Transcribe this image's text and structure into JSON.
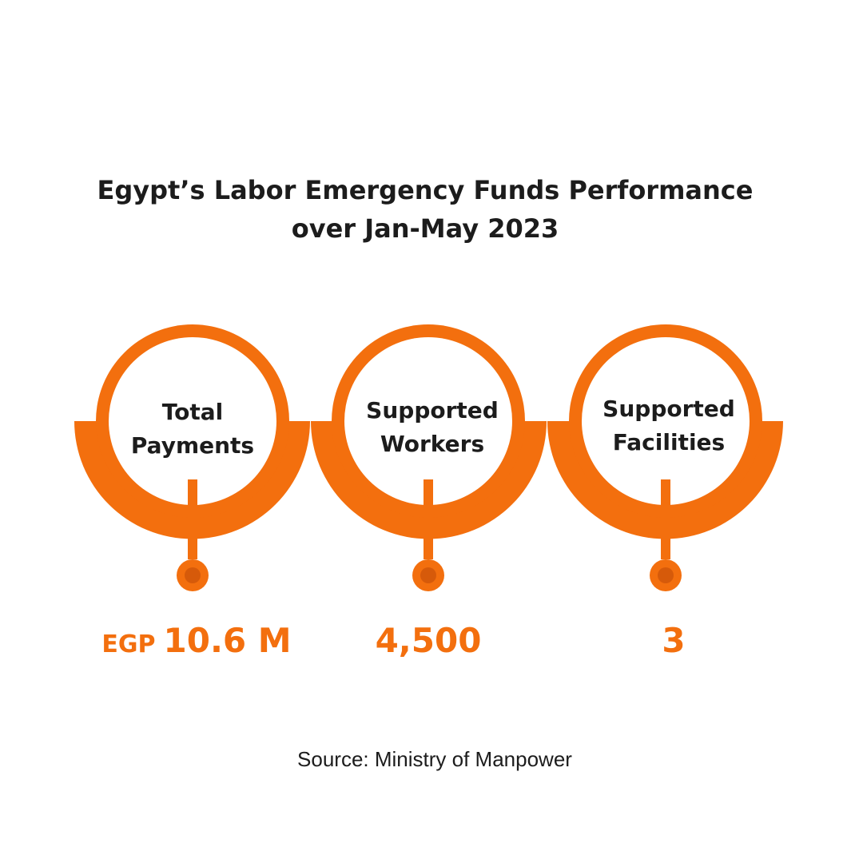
{
  "title": {
    "line1": "Egypt’s Labor Emergency Funds Performance",
    "line2": "over Jan-May 2023"
  },
  "theme": {
    "accent": "#f36f0e",
    "accent_dark": "#d65a0a",
    "text": "#1c1c1c",
    "background": "#ffffff"
  },
  "metrics": [
    {
      "label_line1": "Total",
      "label_line2": "Payments",
      "unit": "EGP",
      "value": "10.6 M"
    },
    {
      "label_line1": "Supported",
      "label_line2": "Workers",
      "unit": "",
      "value": "4,500"
    },
    {
      "label_line1": "Supported",
      "label_line2": "Facilities",
      "unit": "",
      "value": "3"
    }
  ],
  "source": "Source: Ministry of Manpower"
}
